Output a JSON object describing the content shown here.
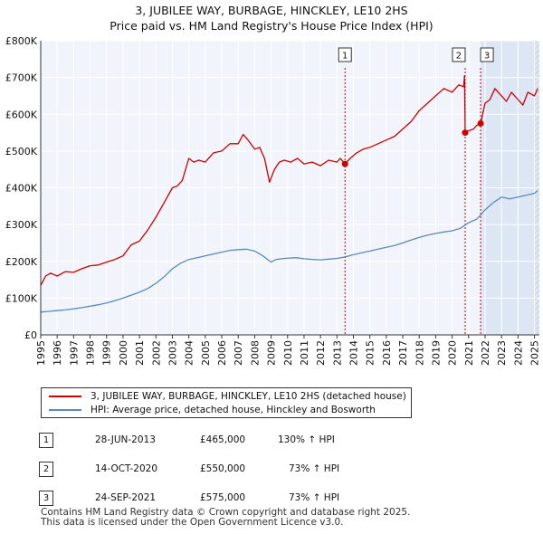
{
  "title": {
    "line1": "3, JUBILEE WAY, BURBAGE, HINCKLEY, LE10 2HS",
    "line2": "Price paid vs. HM Land Registry's House Price Index (HPI)"
  },
  "chart_data": {
    "type": "line",
    "xlim": [
      1995,
      2025.3
    ],
    "ylim": [
      0,
      800000
    ],
    "y_ticks": [
      {
        "value": 0,
        "label": "£0"
      },
      {
        "value": 100000,
        "label": "£100K"
      },
      {
        "value": 200000,
        "label": "£200K"
      },
      {
        "value": 300000,
        "label": "£300K"
      },
      {
        "value": 400000,
        "label": "£400K"
      },
      {
        "value": 500000,
        "label": "£500K"
      },
      {
        "value": 600000,
        "label": "£600K"
      },
      {
        "value": 700000,
        "label": "£700K"
      },
      {
        "value": 800000,
        "label": "£800K"
      }
    ],
    "x_ticks": [
      1995,
      1996,
      1997,
      1998,
      1999,
      2000,
      2001,
      2002,
      2003,
      2004,
      2005,
      2006,
      2007,
      2008,
      2009,
      2010,
      2011,
      2012,
      2013,
      2014,
      2015,
      2016,
      2017,
      2018,
      2019,
      2020,
      2021,
      2022,
      2023,
      2024,
      2025
    ],
    "grid": true,
    "series": [
      {
        "name": "3, JUBILEE WAY, BURBAGE, HINCKLEY, LE10 2HS (detached house)",
        "color": "#cc0000",
        "x": [
          1995.0,
          1995.3,
          1995.6,
          1996.0,
          1996.5,
          1997.0,
          1997.5,
          1998.0,
          1998.5,
          1999.0,
          1999.5,
          2000.0,
          2000.5,
          2001.0,
          2001.5,
          2002.0,
          2002.5,
          2003.0,
          2003.3,
          2003.6,
          2004.0,
          2004.3,
          2004.6,
          2005.0,
          2005.5,
          2006.0,
          2006.5,
          2007.0,
          2007.3,
          2007.6,
          2008.0,
          2008.3,
          2008.6,
          2008.9,
          2009.2,
          2009.5,
          2009.8,
          2010.2,
          2010.6,
          2011.0,
          2011.5,
          2012.0,
          2012.5,
          2013.0,
          2013.2,
          2013.49,
          2013.8,
          2014.2,
          2014.6,
          2015.0,
          2015.5,
          2016.0,
          2016.5,
          2017.0,
          2017.5,
          2018.0,
          2018.5,
          2019.0,
          2019.5,
          2020.0,
          2020.4,
          2020.7,
          2020.75,
          2020.79,
          2021.0,
          2021.3,
          2021.5,
          2021.73,
          2022.0,
          2022.3,
          2022.6,
          2023.0,
          2023.3,
          2023.6,
          2024.0,
          2024.3,
          2024.6,
          2025.0,
          2025.2
        ],
        "values": [
          135000,
          160000,
          168000,
          160000,
          172000,
          170000,
          180000,
          188000,
          190000,
          198000,
          205000,
          215000,
          245000,
          255000,
          285000,
          320000,
          360000,
          400000,
          405000,
          420000,
          480000,
          470000,
          475000,
          470000,
          495000,
          500000,
          520000,
          520000,
          545000,
          530000,
          505000,
          510000,
          480000,
          415000,
          450000,
          470000,
          475000,
          470000,
          480000,
          465000,
          470000,
          460000,
          475000,
          470000,
          480000,
          465000,
          480000,
          495000,
          505000,
          510000,
          520000,
          530000,
          540000,
          560000,
          580000,
          610000,
          630000,
          650000,
          670000,
          660000,
          680000,
          675000,
          705000,
          550000,
          555000,
          560000,
          570000,
          575000,
          630000,
          640000,
          670000,
          650000,
          635000,
          660000,
          640000,
          625000,
          660000,
          650000,
          670000
        ]
      },
      {
        "name": "HPI: Average price, detached house, Hinckley and Bosworth",
        "color": "#5b8ac0",
        "x": [
          1995.0,
          1995.5,
          1996.0,
          1996.5,
          1997.0,
          1997.5,
          1998.0,
          1998.5,
          1999.0,
          1999.5,
          2000.0,
          2000.5,
          2001.0,
          2001.5,
          2002.0,
          2002.5,
          2003.0,
          2003.5,
          2004.0,
          2004.5,
          2005.0,
          2005.5,
          2006.0,
          2006.5,
          2007.0,
          2007.5,
          2008.0,
          2008.5,
          2009.0,
          2009.3,
          2009.8,
          2010.5,
          2011.0,
          2011.5,
          2012.0,
          2012.5,
          2013.0,
          2013.5,
          2014.0,
          2014.5,
          2015.0,
          2015.5,
          2016.0,
          2016.5,
          2017.0,
          2017.5,
          2018.0,
          2018.5,
          2019.0,
          2019.5,
          2020.0,
          2020.5,
          2021.0,
          2021.5,
          2022.0,
          2022.5,
          2023.0,
          2023.5,
          2024.0,
          2024.5,
          2025.0,
          2025.2
        ],
        "values": [
          62000,
          64000,
          66000,
          68000,
          71000,
          74000,
          78000,
          82000,
          87000,
          93000,
          100000,
          108000,
          116000,
          126000,
          140000,
          158000,
          180000,
          195000,
          205000,
          210000,
          215000,
          220000,
          225000,
          230000,
          232000,
          233000,
          228000,
          215000,
          198000,
          205000,
          208000,
          210000,
          207000,
          205000,
          204000,
          206000,
          208000,
          212000,
          218000,
          223000,
          228000,
          233000,
          238000,
          243000,
          250000,
          258000,
          265000,
          271000,
          276000,
          280000,
          283000,
          290000,
          305000,
          315000,
          340000,
          360000,
          375000,
          370000,
          375000,
          380000,
          385000,
          392000
        ]
      }
    ],
    "sales": [
      {
        "num": "1",
        "x": 2013.49,
        "y": 465000
      },
      {
        "num": "2",
        "x": 2020.79,
        "y": 550000
      },
      {
        "num": "3",
        "x": 2021.73,
        "y": 575000
      }
    ]
  },
  "legend": [
    {
      "label": "3, JUBILEE WAY, BURBAGE, HINCKLEY, LE10 2HS (detached house)",
      "color": "#cc0000"
    },
    {
      "label": "HPI: Average price, detached house, Hinckley and Bosworth",
      "color": "#5b8ac0"
    }
  ],
  "sales_table": [
    {
      "num": "1",
      "date": "28-JUN-2013",
      "price": "£465,000",
      "hpi": "130% ↑ HPI"
    },
    {
      "num": "2",
      "date": "14-OCT-2020",
      "price": "£550,000",
      "hpi": "73% ↑ HPI"
    },
    {
      "num": "3",
      "date": "24-SEP-2021",
      "price": "£575,000",
      "hpi": "73% ↑ HPI"
    }
  ],
  "footer": {
    "line1": "Contains HM Land Registry data © Crown copyright and database right 2025.",
    "line2": "This data is licensed under the Open Government Licence v3.0."
  }
}
